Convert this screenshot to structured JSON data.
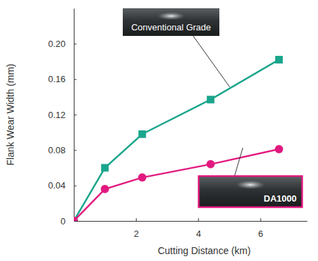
{
  "chart_data": {
    "type": "line",
    "x_label": "Cutting Distance (km)",
    "y_label": "Flank Wear Width (mm)",
    "x": [
      0,
      1,
      2.2,
      4.4,
      6.6
    ],
    "series": [
      {
        "name": "Conventional Grade",
        "color": "#1aa58c",
        "marker": "square",
        "values": [
          0,
          0.06,
          0.098,
          0.137,
          0.182
        ]
      },
      {
        "name": "DA1000",
        "color": "#e2197f",
        "marker": "circle",
        "values": [
          0,
          0.036,
          0.049,
          0.064,
          0.081
        ]
      }
    ],
    "xlim": [
      0,
      7.5
    ],
    "xticks": [
      2,
      4,
      6
    ],
    "ylim": [
      0,
      0.24
    ],
    "yticks": [
      0,
      0.04,
      0.08,
      0.12,
      0.16,
      {
        "value": 0.2,
        "label": "0.20"
      }
    ],
    "grid": false
  }
}
